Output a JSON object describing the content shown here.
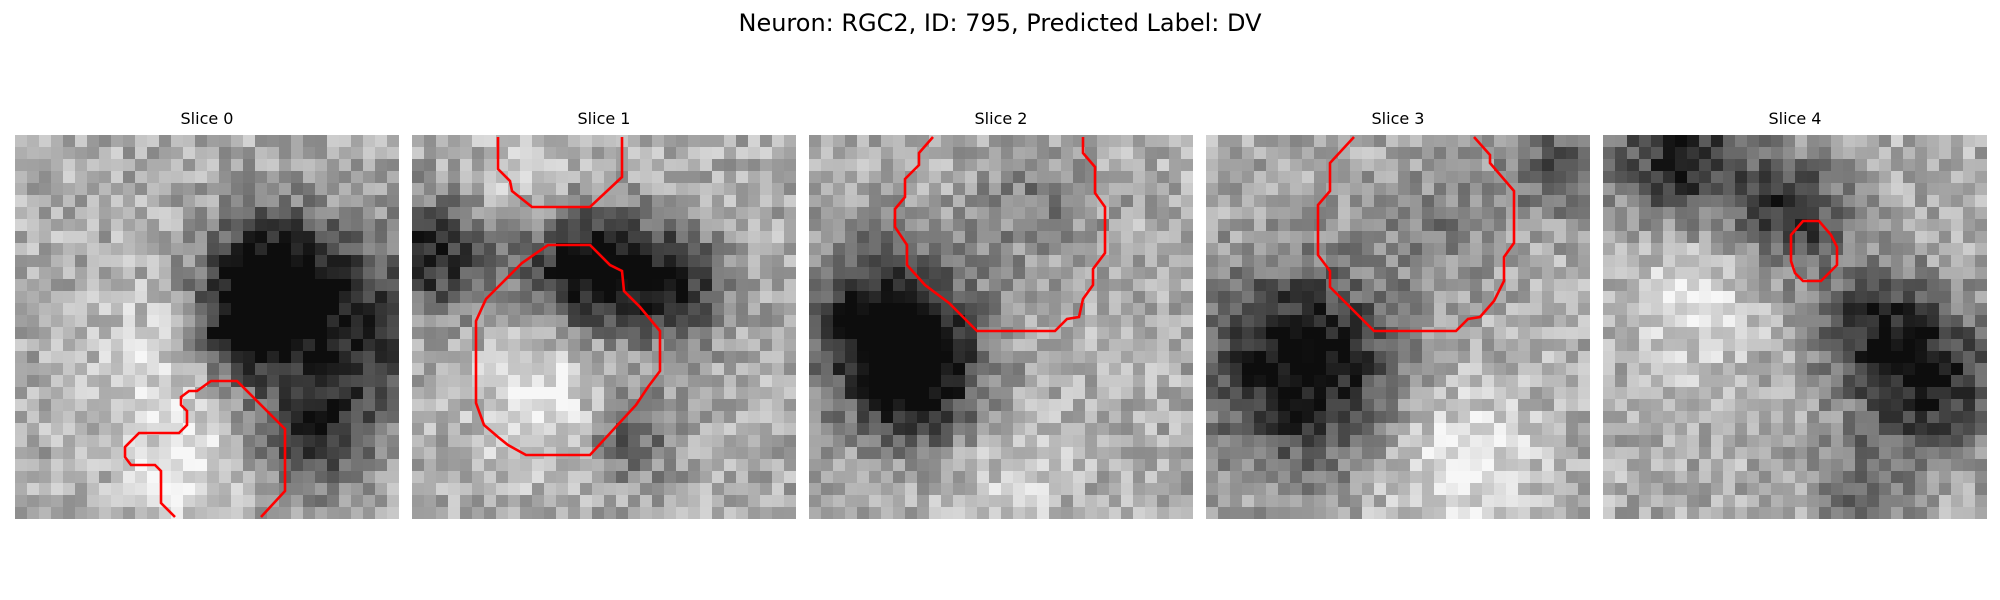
{
  "figure": {
    "title": "Neuron: RGC2, ID: 795, Predicted Label: DV",
    "outline_color": "#ff0000"
  },
  "panels": [
    {
      "title": "Slice 0"
    },
    {
      "title": "Slice 1"
    },
    {
      "title": "Slice 2"
    },
    {
      "title": "Slice 3"
    },
    {
      "title": "Slice 4"
    }
  ]
}
